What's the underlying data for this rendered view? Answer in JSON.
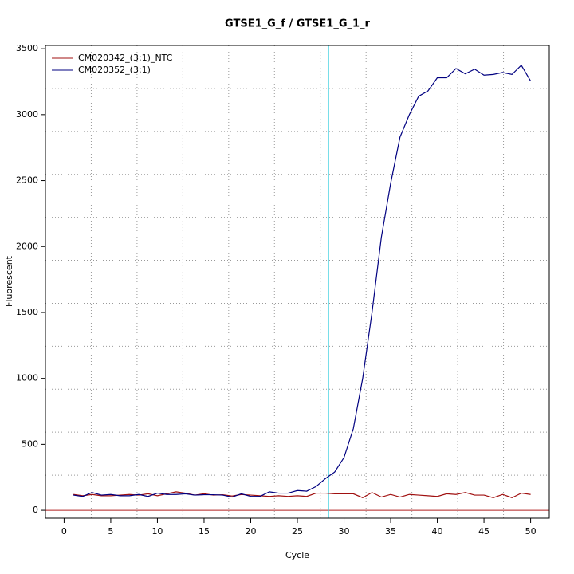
{
  "chart_data": {
    "type": "line",
    "title": "GTSE1_G_f / GTSE1_G_1_r",
    "x_label": "Cycle",
    "y_label": "Fluorescent",
    "x": [
      1,
      2,
      3,
      4,
      5,
      6,
      7,
      8,
      9,
      10,
      11,
      12,
      13,
      14,
      15,
      16,
      17,
      18,
      19,
      20,
      21,
      22,
      23,
      24,
      25,
      26,
      27,
      28,
      29,
      30,
      31,
      32,
      33,
      34,
      35,
      36,
      37,
      38,
      39,
      40,
      41,
      42,
      43,
      44,
      45,
      46,
      47,
      48,
      49,
      50
    ],
    "series": [
      {
        "name": "CM020342_(3:1)_NTC",
        "color": "#a01010",
        "values": [
          120,
          110,
          120,
          110,
          110,
          115,
          120,
          115,
          125,
          110,
          125,
          140,
          130,
          115,
          125,
          115,
          118,
          108,
          120,
          115,
          110,
          105,
          110,
          105,
          110,
          105,
          130,
          130,
          125,
          125,
          125,
          95,
          135,
          100,
          120,
          100,
          120,
          115,
          110,
          105,
          125,
          120,
          135,
          115,
          115,
          95,
          120,
          95,
          130,
          120
        ]
      },
      {
        "name": "CM020352_(3:1)",
        "color": "#000080",
        "values": [
          115,
          105,
          135,
          115,
          120,
          110,
          110,
          120,
          105,
          130,
          120,
          120,
          125,
          115,
          118,
          118,
          115,
          100,
          125,
          105,
          105,
          140,
          130,
          130,
          150,
          145,
          180,
          240,
          290,
          400,
          620,
          1000,
          1500,
          2070,
          2480,
          2830,
          3000,
          3140,
          3180,
          3280,
          3280,
          3350,
          3310,
          3345,
          3300,
          3305,
          3320,
          3305,
          3375,
          3255
        ]
      }
    ],
    "threshold_cycle": 28.35,
    "threshold_color": "#40d0e0",
    "baseline": 0,
    "baseline_color": "#b22222",
    "xlim": [
      -2,
      52
    ],
    "ylim": [
      -60,
      3525
    ],
    "xticks": [
      0,
      5,
      10,
      15,
      20,
      25,
      30,
      35,
      40,
      45,
      50
    ],
    "yticks": [
      0,
      500,
      1000,
      1500,
      2000,
      2500,
      3000,
      3500
    ],
    "grid": true,
    "legend": "top-left"
  }
}
